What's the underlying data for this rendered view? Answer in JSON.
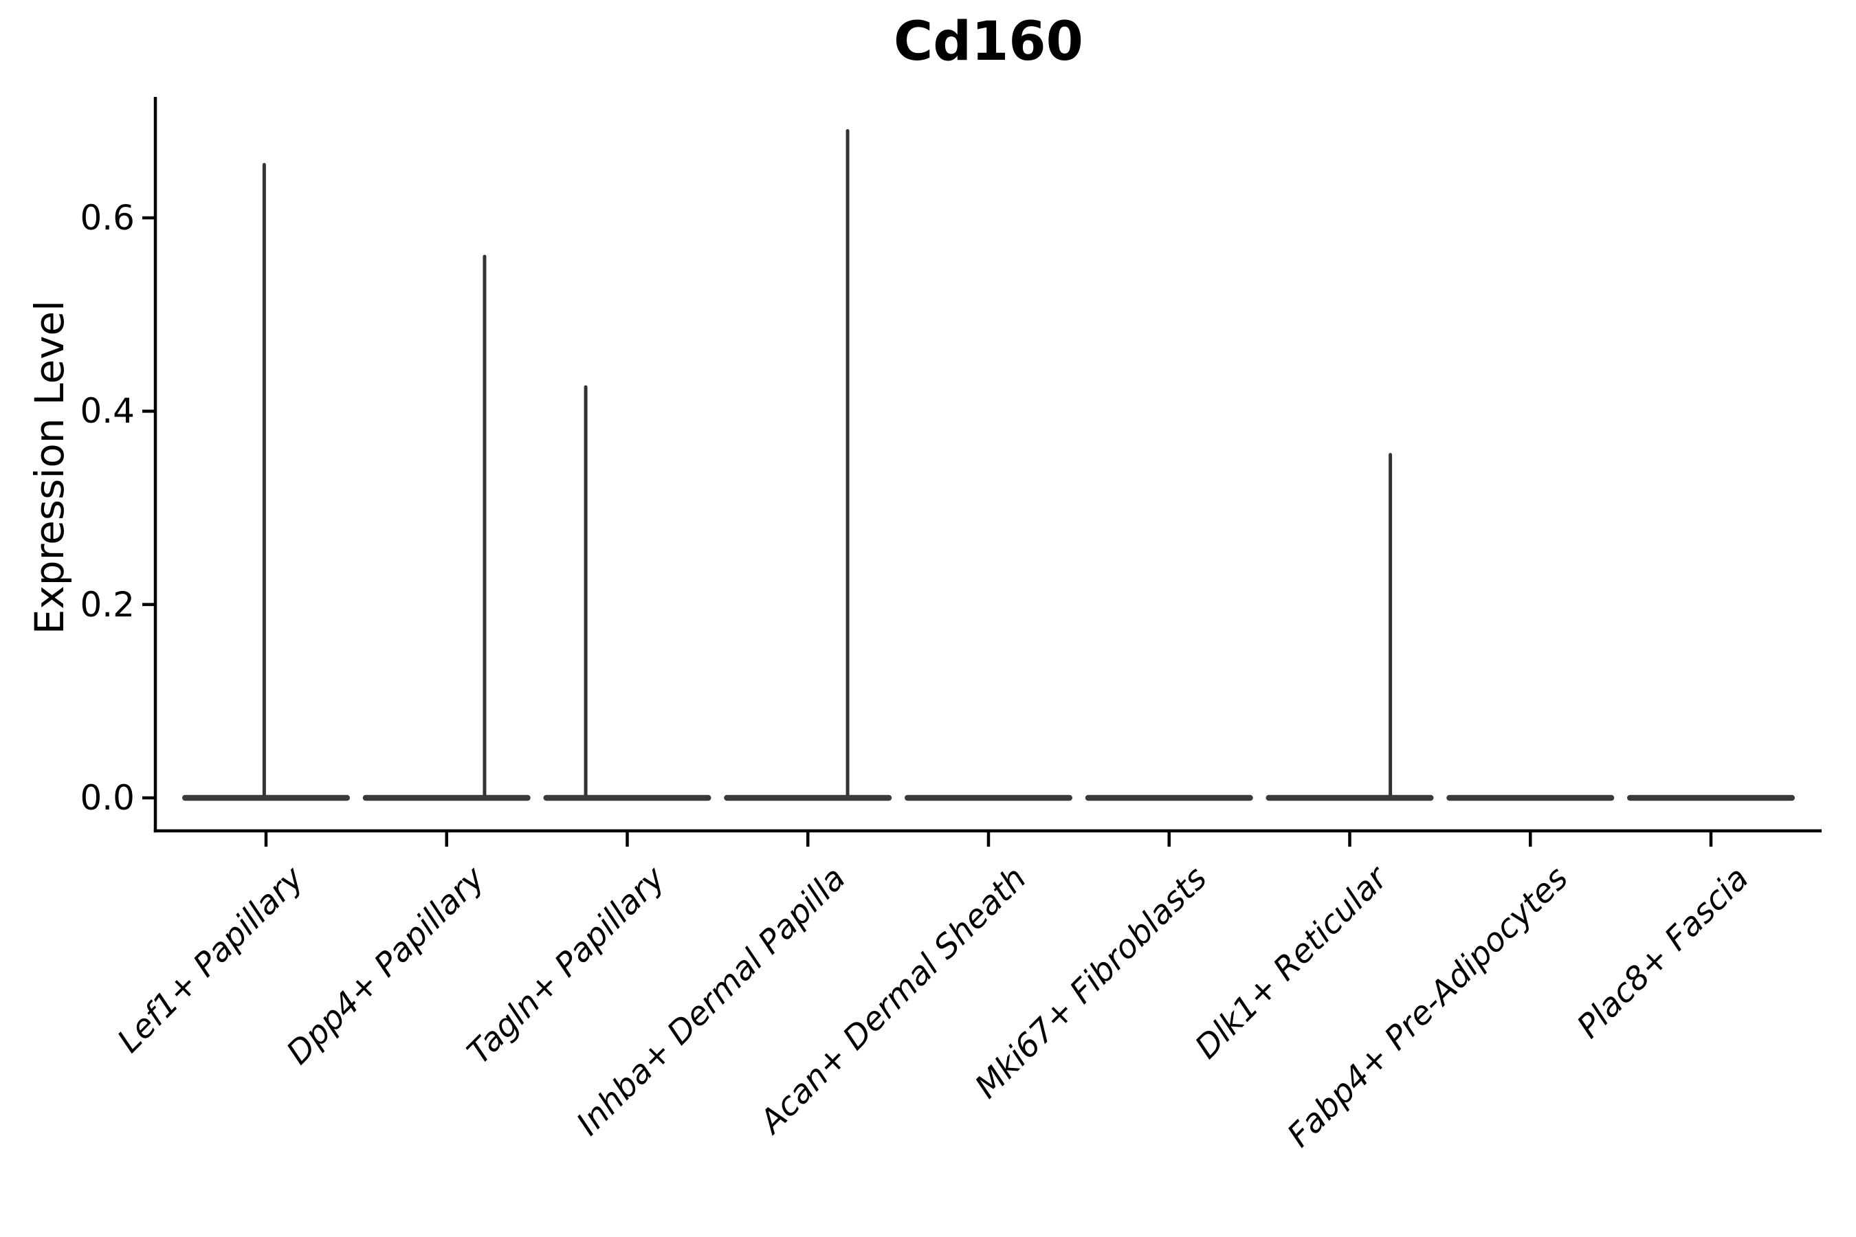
{
  "chart_data": {
    "type": "violin",
    "title": "Cd160",
    "ylabel": "Expression Level",
    "xlabel": "",
    "grid": false,
    "legend": null,
    "ylim": [
      -0.035,
      0.725
    ],
    "yticks": [
      0.0,
      0.2,
      0.4,
      0.6
    ],
    "ytick_labels": [
      "0.0",
      "0.2",
      "0.4",
      "0.6"
    ],
    "categories": [
      "Lef1+ Papillary",
      "Dpp4+ Papillary",
      "Tagln+ Papillary",
      "Inhba+ Dermal Papilla",
      "Acan+ Dermal Sheath",
      "Mki67+ Fibroblasts",
      "Dlk1+ Reticular",
      "Fabp4+ Pre-Adipocytes",
      "Plac8+ Fascia"
    ],
    "violins": [
      {
        "category": "Lef1+ Papillary",
        "baseline": 0.0,
        "max_expression": 0.655,
        "spike_offset_frac": -0.01
      },
      {
        "category": "Dpp4+ Papillary",
        "baseline": 0.0,
        "max_expression": 0.56,
        "spike_offset_frac": 0.21
      },
      {
        "category": "Tagln+ Papillary",
        "baseline": 0.0,
        "max_expression": 0.425,
        "spike_offset_frac": -0.23
      },
      {
        "category": "Inhba+ Dermal Papilla",
        "baseline": 0.0,
        "max_expression": 0.69,
        "spike_offset_frac": 0.22
      },
      {
        "category": "Acan+ Dermal Sheath",
        "baseline": 0.0,
        "max_expression": 0.0,
        "spike_offset_frac": 0.0
      },
      {
        "category": "Mki67+ Fibroblasts",
        "baseline": 0.0,
        "max_expression": 0.0,
        "spike_offset_frac": 0.0
      },
      {
        "category": "Dlk1+ Reticular",
        "baseline": 0.0,
        "max_expression": 0.355,
        "spike_offset_frac": 0.225
      },
      {
        "category": "Fabp4+ Pre-Adipocytes",
        "baseline": 0.0,
        "max_expression": 0.0,
        "spike_offset_frac": 0.0
      },
      {
        "category": "Plac8+ Fascia",
        "baseline": 0.0,
        "max_expression": 0.0,
        "spike_offset_frac": 0.0
      }
    ],
    "colors": {
      "violin_fill": "#3a3a3a",
      "spike_stroke": "#333333",
      "axis": "#000000",
      "text": "#000000",
      "background": "#ffffff"
    }
  }
}
